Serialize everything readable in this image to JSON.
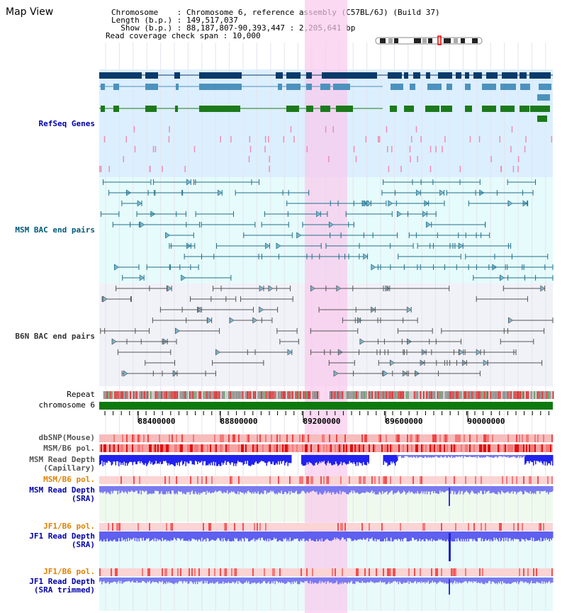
{
  "app": {
    "title": "Map View"
  },
  "info": {
    "chromosome_label": "Chromosome",
    "chromosome_value": "Chromosome 6, reference assembly (C57BL/6J) (Build 37)",
    "length_label": "Length (b.p.)",
    "length_value": "149,517,037",
    "show_label": "Show (b.p.)",
    "show_value": "88,187,807-90,393,447 : 2,205,641 bp",
    "coverage_label": "Read coverage check span",
    "coverage_value": "10,000"
  },
  "tracks": {
    "refseq": "RefSeq Genes",
    "msm_bac": "MSM BAC end pairs",
    "b6n_bac": "B6N BAC end pairs",
    "repeat": "Repeat",
    "chromosome": "chromosome 6",
    "dbsnp": "dbSNP(Mouse)",
    "msm_b6_pol": "MSM/B6 pol.",
    "msm_depth_cap_1": "MSM Read Depth",
    "msm_depth_cap_2": "(Capillary)",
    "msm_b6_pol_2": "MSM/B6 pol.",
    "msm_depth_sra_1": "MSM Read Depth",
    "msm_depth_sra_2": "(SRA)",
    "jf1_b6_pol": "JF1/B6 pol.",
    "jf1_depth_sra_1": "JF1 Read Depth",
    "jf1_depth_sra_2": "(SRA)",
    "jf1_b6_pol_2": "JF1/B6 pol.",
    "jf1_depth_trim_1": "JF1 Read Depth",
    "jf1_depth_trim_2": "(SRA trimmed)"
  },
  "axis": {
    "ticks": [
      "88400000",
      "88800000",
      "89200000",
      "89600000",
      "90000000"
    ]
  },
  "colors": {
    "refseq_label": "#0000aa",
    "msm_label": "#005a7a",
    "b6n_label": "#333333",
    "orange_label": "#e08000",
    "blue_label": "#0000aa",
    "highlight": "#f9c9ec",
    "refseq_bg": "#dcefff",
    "msm_bg": "#e6fbfb",
    "b6n_bg": "#f1f1f8"
  }
}
